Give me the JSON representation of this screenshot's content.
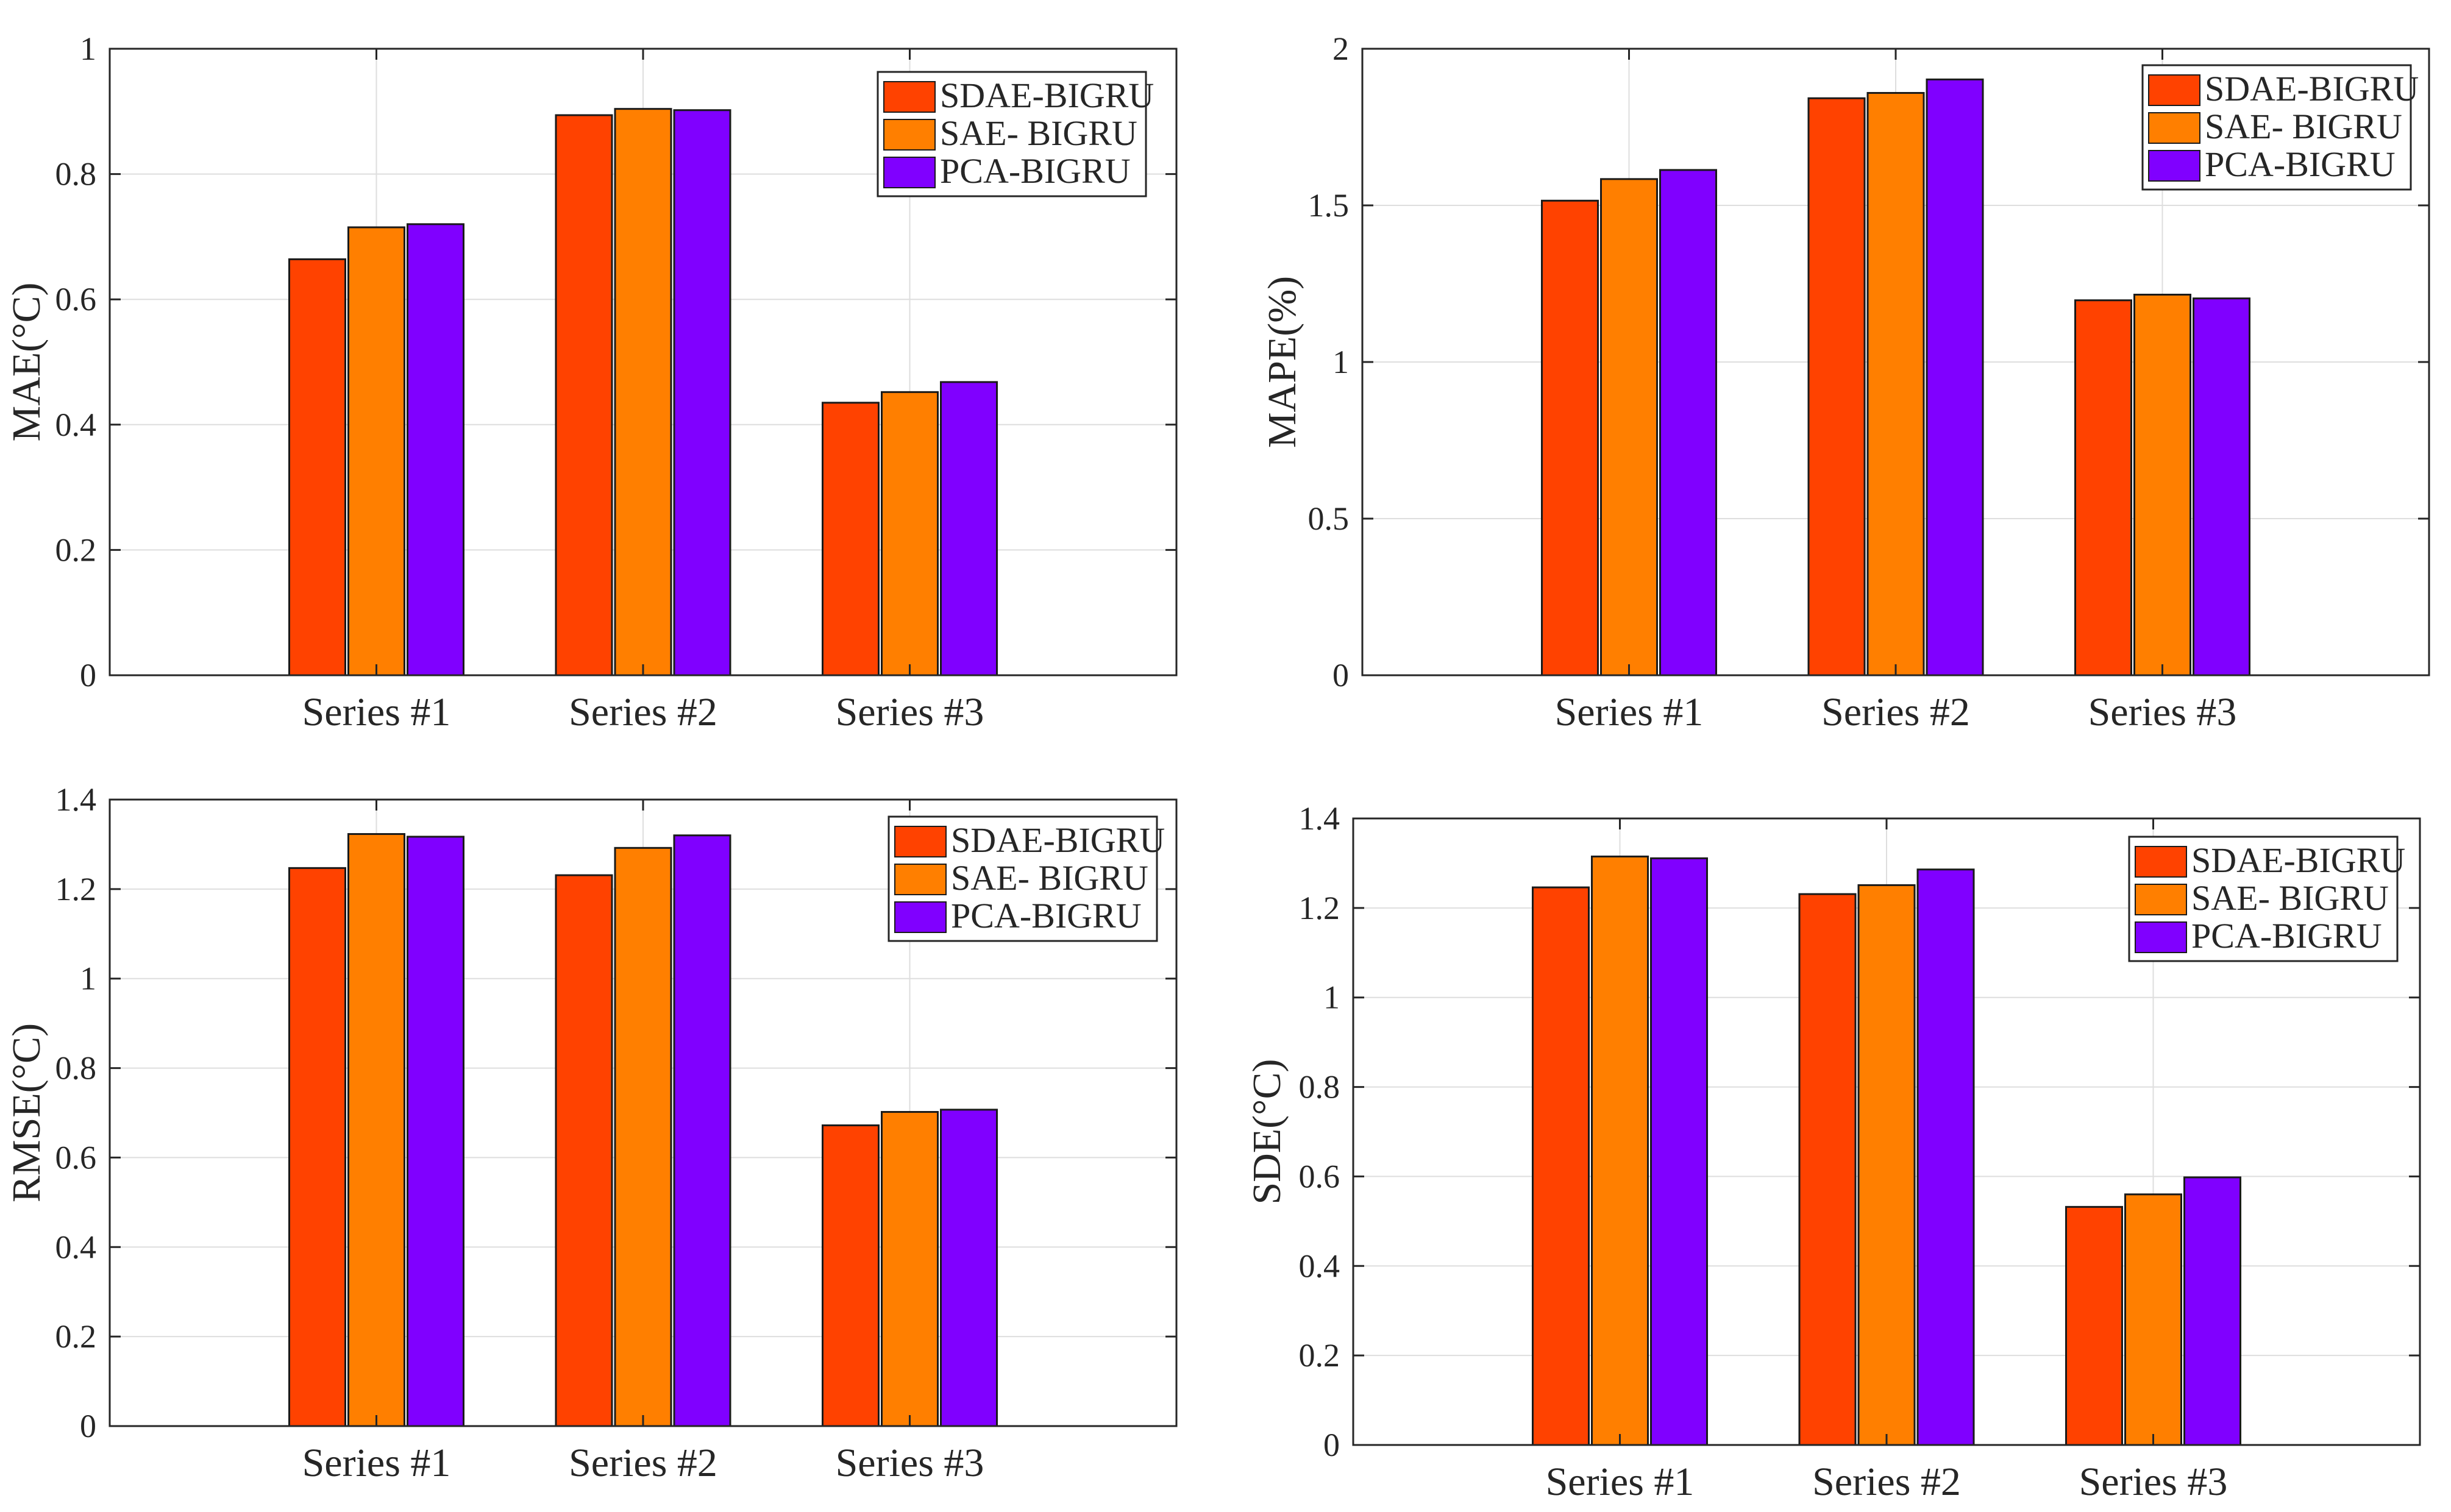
{
  "colors": {
    "series": [
      "#ff4200",
      "#ff7f00",
      "#8000ff"
    ],
    "grid": "#dedede",
    "axis": "#262626"
  },
  "chart_data": [
    {
      "type": "bar",
      "title": "",
      "xlabel": "",
      "ylabel": "MAE(°C)",
      "ylim": [
        0,
        1
      ],
      "yticks": [
        0,
        0.2,
        0.4,
        0.6,
        0.8,
        1
      ],
      "ytick_labels": [
        "0",
        "0.2",
        "0.4",
        "0.6",
        "0.8",
        "1"
      ],
      "categories": [
        "Series #1",
        "Series #2",
        "Series #3"
      ],
      "legend_position": "top-right",
      "grid": true,
      "series": [
        {
          "name": "SDAE-BIGRU",
          "values": [
            0.664,
            0.894,
            0.435
          ]
        },
        {
          "name": "SAE- BIGRU",
          "values": [
            0.715,
            0.904,
            0.452
          ]
        },
        {
          "name": "PCA-BIGRU",
          "values": [
            0.72,
            0.902,
            0.468
          ]
        }
      ]
    },
    {
      "type": "bar",
      "title": "",
      "xlabel": "",
      "ylabel": "MAPE(%)",
      "ylim": [
        0,
        2
      ],
      "yticks": [
        0,
        0.5,
        1,
        1.5,
        2
      ],
      "ytick_labels": [
        "0",
        "0.5",
        "1",
        "1.5",
        "2"
      ],
      "categories": [
        "Series #1",
        "Series #2",
        "Series #3"
      ],
      "legend_position": "top-right",
      "grid": true,
      "series": [
        {
          "name": "SDAE-BIGRU",
          "values": [
            1.515,
            1.842,
            1.197
          ]
        },
        {
          "name": "SAE- BIGRU",
          "values": [
            1.584,
            1.859,
            1.215
          ]
        },
        {
          "name": "PCA-BIGRU",
          "values": [
            1.613,
            1.902,
            1.203
          ]
        }
      ]
    },
    {
      "type": "bar",
      "title": "",
      "xlabel": "",
      "ylabel": "RMSE(°C)",
      "ylim": [
        0,
        1.4
      ],
      "yticks": [
        0,
        0.2,
        0.4,
        0.6,
        0.8,
        1,
        1.2,
        1.4
      ],
      "ytick_labels": [
        "0",
        "0.2",
        "0.4",
        "0.6",
        "0.8",
        "1",
        "1.2",
        "1.4"
      ],
      "categories": [
        "Series #1",
        "Series #2",
        "Series #3"
      ],
      "legend_position": "top-right",
      "grid": true,
      "series": [
        {
          "name": "SDAE-BIGRU",
          "values": [
            1.247,
            1.231,
            0.672
          ]
        },
        {
          "name": "SAE- BIGRU",
          "values": [
            1.323,
            1.292,
            0.702
          ]
        },
        {
          "name": "PCA-BIGRU",
          "values": [
            1.317,
            1.32,
            0.707
          ]
        }
      ]
    },
    {
      "type": "bar",
      "title": "",
      "xlabel": "",
      "ylabel": "SDE(°C)",
      "ylim": [
        0,
        1.4
      ],
      "yticks": [
        0,
        0.2,
        0.4,
        0.6,
        0.8,
        1,
        1.2,
        1.4
      ],
      "ytick_labels": [
        "0",
        "0.2",
        "0.4",
        "0.6",
        "0.8",
        "1",
        "1.2",
        "1.4"
      ],
      "categories": [
        "Series #1",
        "Series #2",
        "Series #3"
      ],
      "legend_position": "top-right",
      "grid": true,
      "series": [
        {
          "name": "SDAE-BIGRU",
          "values": [
            1.246,
            1.231,
            0.532
          ]
        },
        {
          "name": "SAE- BIGRU",
          "values": [
            1.315,
            1.251,
            0.56
          ]
        },
        {
          "name": "PCA-BIGRU",
          "values": [
            1.311,
            1.286,
            0.598
          ]
        }
      ]
    }
  ]
}
